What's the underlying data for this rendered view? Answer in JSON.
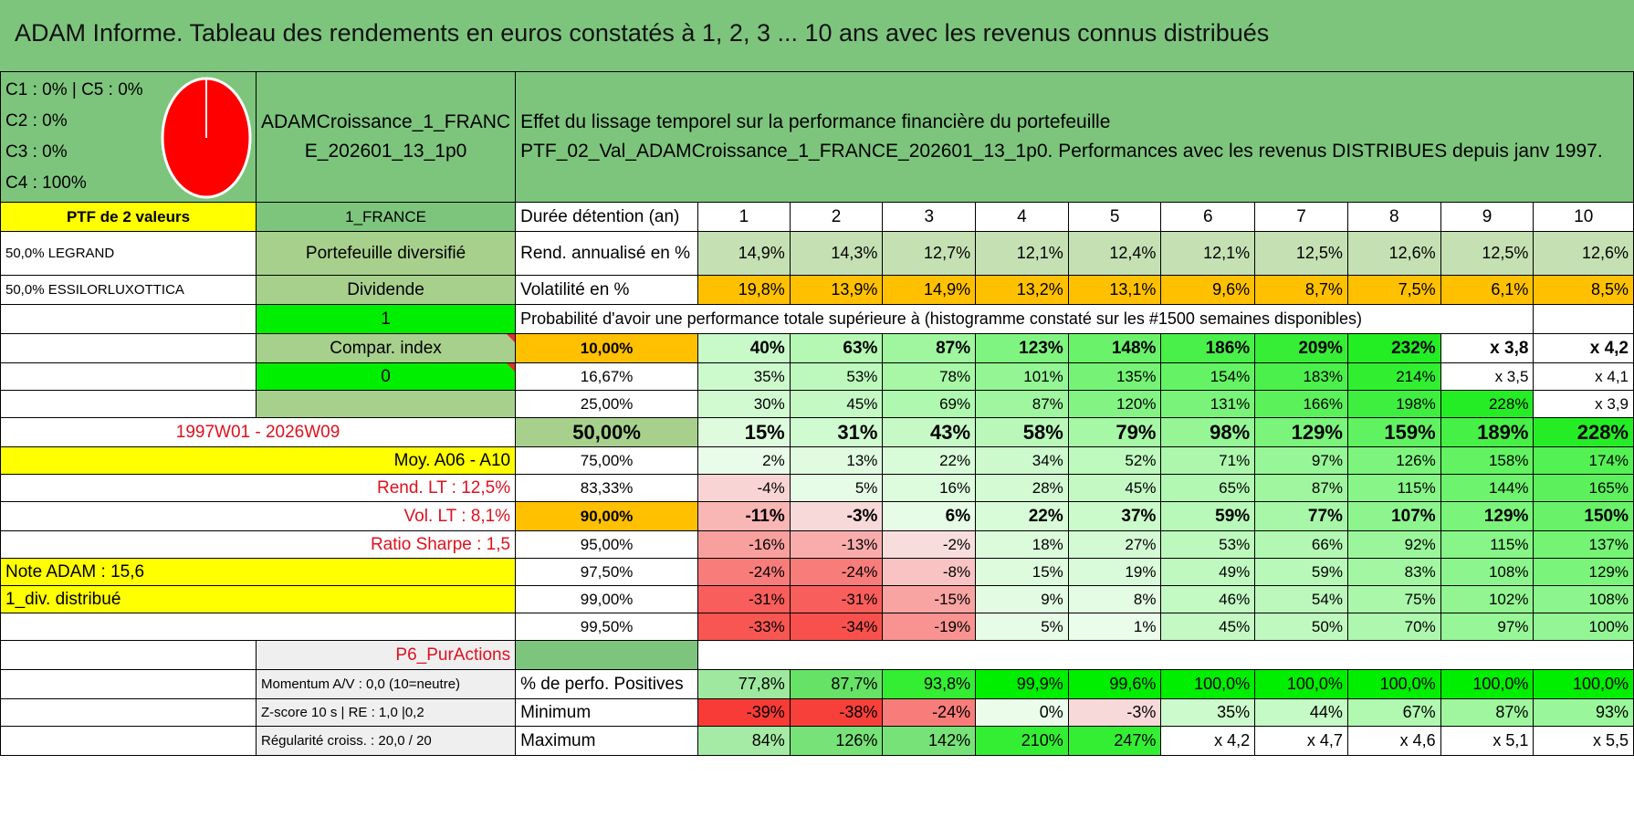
{
  "title": "ADAM Informe. Tableau des rendements en euros constatés à 1, 2, 3 ... 10 ans avec les revenus connus distribués",
  "colors": {
    "title_bg": "#7dc57d",
    "pie": "#ff0000"
  },
  "legend": {
    "line1": "C1 : 0% | C5 : 0%",
    "line2": "C2 : 0%",
    "line3": "C3 : 0%",
    "line4": "C4 : 100%"
  },
  "portfolio_name_1": "ADAMCroissance_1_FRANC",
  "portfolio_name_2": "E_202601_13_1p0",
  "effect_title": "Effet du lissage temporel sur la performance financière du portefeuille",
  "effect_subtitle": "PTF_02_Val_ADAMCroissance_1_FRANCE_202601_13_1p0. Performances avec les revenus DISTRIBUES depuis janv 1997.",
  "ptf_label": "PTF de 2 valeurs",
  "region": "1_FRANCE",
  "holding_label": "Durée détention (an)",
  "years": [
    "1",
    "2",
    "3",
    "4",
    "5",
    "6",
    "7",
    "8",
    "9",
    "10"
  ],
  "holdings": [
    "50,0% LEGRAND",
    "50,0% ESSILORLUXOTTICA"
  ],
  "portfolio_type": "Portefeuille diversifié",
  "dividend_label": "Dividende",
  "rend_label": "Rend. annualisé en %",
  "rend_values": [
    "14,9%",
    "14,3%",
    "12,7%",
    "12,1%",
    "12,4%",
    "12,1%",
    "12,5%",
    "12,6%",
    "12,5%",
    "12,6%"
  ],
  "vol_label": "Volatilité en %",
  "vol_values": [
    "19,8%",
    "13,9%",
    "14,9%",
    "13,2%",
    "13,1%",
    "9,6%",
    "8,7%",
    "7,5%",
    "6,1%",
    "8,5%"
  ],
  "green_one": "1",
  "proba_title": "Probabilité d'avoir une performance totale supérieure à (histogramme constaté sur les #1500 semaines disponibles)",
  "compar_label": "Compar. index",
  "green_zero": "0",
  "period": "1997W01 - 2026W09",
  "moy": "Moy. A06 - A10",
  "rend_lt": "Rend. LT : 12,5%",
  "vol_lt": "Vol. LT : 8,1%",
  "sharpe": "Ratio Sharpe : 1,5",
  "note": "Note ADAM : 15,6",
  "div": "1_div. distribué",
  "prob_rows": [
    {
      "pct": "10,00%",
      "vals": [
        "40%",
        "63%",
        "87%",
        "123%",
        "148%",
        "186%",
        "209%",
        "232%",
        "x 3,8",
        "x 4,2"
      ]
    },
    {
      "pct": "16,67%",
      "vals": [
        "35%",
        "53%",
        "78%",
        "101%",
        "135%",
        "154%",
        "183%",
        "214%",
        "x 3,5",
        "x 4,1"
      ]
    },
    {
      "pct": "25,00%",
      "vals": [
        "30%",
        "45%",
        "69%",
        "87%",
        "120%",
        "131%",
        "166%",
        "198%",
        "228%",
        "x 3,9"
      ]
    },
    {
      "pct": "50,00%",
      "vals": [
        "15%",
        "31%",
        "43%",
        "58%",
        "79%",
        "98%",
        "129%",
        "159%",
        "189%",
        "228%"
      ]
    },
    {
      "pct": "75,00%",
      "vals": [
        "2%",
        "13%",
        "22%",
        "34%",
        "52%",
        "71%",
        "97%",
        "126%",
        "158%",
        "174%"
      ]
    },
    {
      "pct": "83,33%",
      "vals": [
        "-4%",
        "5%",
        "16%",
        "28%",
        "45%",
        "65%",
        "87%",
        "115%",
        "144%",
        "165%"
      ]
    },
    {
      "pct": "90,00%",
      "vals": [
        "-11%",
        "-3%",
        "6%",
        "22%",
        "37%",
        "59%",
        "77%",
        "107%",
        "129%",
        "150%"
      ]
    },
    {
      "pct": "95,00%",
      "vals": [
        "-16%",
        "-13%",
        "-2%",
        "18%",
        "27%",
        "53%",
        "66%",
        "92%",
        "115%",
        "137%"
      ]
    },
    {
      "pct": "97,50%",
      "vals": [
        "-24%",
        "-24%",
        "-8%",
        "15%",
        "19%",
        "49%",
        "59%",
        "83%",
        "108%",
        "129%"
      ]
    },
    {
      "pct": "99,00%",
      "vals": [
        "-31%",
        "-31%",
        "-15%",
        "9%",
        "8%",
        "46%",
        "54%",
        "75%",
        "102%",
        "108%"
      ]
    },
    {
      "pct": "99,50%",
      "vals": [
        "-33%",
        "-34%",
        "-19%",
        "5%",
        "1%",
        "45%",
        "50%",
        "70%",
        "97%",
        "100%"
      ]
    }
  ],
  "p6": "P6_PurActions",
  "momentum": "Momentum A/V : 0,0 (10=neutre)",
  "zscore": "Z-score 10 s | RE : 1,0 |0,2",
  "regul": "Régularité croiss. : 20,0 / 20",
  "pos_label": "% de perfo. Positives",
  "pos_values": [
    "77,8%",
    "87,7%",
    "93,8%",
    "99,9%",
    "99,6%",
    "100,0%",
    "100,0%",
    "100,0%",
    "100,0%",
    "100,0%"
  ],
  "min_label": "Minimum",
  "min_values": [
    "-39%",
    "-38%",
    "-24%",
    "0%",
    "-3%",
    "35%",
    "44%",
    "67%",
    "87%",
    "93%"
  ],
  "max_label": "Maximum",
  "max_values": [
    "84%",
    "126%",
    "142%",
    "210%",
    "247%",
    "x 4,2",
    "x 4,7",
    "x 4,6",
    "x 5,1",
    "x 5,5"
  ]
}
